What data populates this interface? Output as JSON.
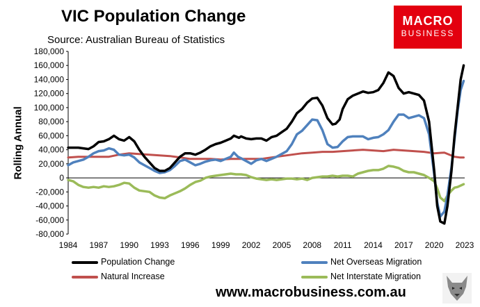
{
  "chart_data": {
    "type": "line",
    "title": "VIC Population Change",
    "subtitle": "Source: Australian Bureau of Statistics",
    "ylabel": "Rolling Annual",
    "xlabel": "",
    "xlim": [
      1984,
      2023
    ],
    "ylim": [
      -80000,
      180000
    ],
    "x_ticks": [
      1984,
      1987,
      1990,
      1993,
      1996,
      1999,
      2002,
      2005,
      2008,
      2011,
      2014,
      2017,
      2020,
      2023
    ],
    "y_ticks": [
      180000,
      160000,
      140000,
      120000,
      100000,
      80000,
      60000,
      40000,
      20000,
      0,
      -20000,
      -40000,
      -60000,
      -80000
    ],
    "y_tick_labels": [
      "180,000",
      "160,000",
      "140,000",
      "120,000",
      "100,000",
      "80,000",
      "60,000",
      "40,000",
      "20,000",
      "0",
      "-20,000",
      "-40,000",
      "-60,000",
      "-80,000"
    ],
    "series": [
      {
        "name": "Population Change",
        "color": "#000000",
        "points": [
          [
            1984,
            43000
          ],
          [
            1985,
            43000
          ],
          [
            1986,
            41000
          ],
          [
            1986.5,
            45000
          ],
          [
            1987,
            51000
          ],
          [
            1987.5,
            52000
          ],
          [
            1988,
            55000
          ],
          [
            1988.5,
            60000
          ],
          [
            1989,
            55000
          ],
          [
            1989.5,
            53000
          ],
          [
            1990,
            58000
          ],
          [
            1990.5,
            52000
          ],
          [
            1991,
            40000
          ],
          [
            1991.5,
            30000
          ],
          [
            1992,
            22000
          ],
          [
            1992.5,
            14000
          ],
          [
            1993,
            10000
          ],
          [
            1993.5,
            10000
          ],
          [
            1994,
            14000
          ],
          [
            1994.5,
            22000
          ],
          [
            1995,
            30000
          ],
          [
            1995.5,
            35000
          ],
          [
            1996,
            35000
          ],
          [
            1996.5,
            33000
          ],
          [
            1997,
            36000
          ],
          [
            1997.5,
            40000
          ],
          [
            1998,
            45000
          ],
          [
            1998.5,
            48000
          ],
          [
            1999,
            50000
          ],
          [
            1999.5,
            53000
          ],
          [
            2000,
            56000
          ],
          [
            2000.3,
            60000
          ],
          [
            2000.8,
            57000
          ],
          [
            2001,
            59000
          ],
          [
            2001.5,
            56000
          ],
          [
            2002,
            55000
          ],
          [
            2002.5,
            56000
          ],
          [
            2003,
            56000
          ],
          [
            2003.5,
            53000
          ],
          [
            2004,
            58000
          ],
          [
            2004.5,
            60000
          ],
          [
            2005,
            65000
          ],
          [
            2005.5,
            70000
          ],
          [
            2006,
            80000
          ],
          [
            2006.5,
            92000
          ],
          [
            2007,
            98000
          ],
          [
            2007.5,
            107000
          ],
          [
            2008,
            113000
          ],
          [
            2008.5,
            114000
          ],
          [
            2009,
            103000
          ],
          [
            2009.5,
            85000
          ],
          [
            2010,
            76000
          ],
          [
            2010.3,
            77000
          ],
          [
            2010.7,
            83000
          ],
          [
            2011,
            98000
          ],
          [
            2011.5,
            112000
          ],
          [
            2012,
            117000
          ],
          [
            2012.5,
            120000
          ],
          [
            2013,
            123000
          ],
          [
            2013.5,
            121000
          ],
          [
            2014,
            122000
          ],
          [
            2014.5,
            125000
          ],
          [
            2015,
            135000
          ],
          [
            2015.5,
            150000
          ],
          [
            2016,
            145000
          ],
          [
            2016.5,
            128000
          ],
          [
            2017,
            120000
          ],
          [
            2017.5,
            122000
          ],
          [
            2018,
            120000
          ],
          [
            2018.5,
            118000
          ],
          [
            2019,
            110000
          ],
          [
            2019.5,
            80000
          ],
          [
            2020,
            10000
          ],
          [
            2020.3,
            -40000
          ],
          [
            2020.6,
            -62000
          ],
          [
            2021,
            -65000
          ],
          [
            2021.3,
            -40000
          ],
          [
            2021.7,
            10000
          ],
          [
            2022,
            60000
          ],
          [
            2022.3,
            100000
          ],
          [
            2022.6,
            140000
          ],
          [
            2022.9,
            160000
          ]
        ]
      },
      {
        "name": "Net Overseas Migration",
        "color": "#4f81bd",
        "points": [
          [
            1984,
            18000
          ],
          [
            1984.5,
            22000
          ],
          [
            1985,
            24000
          ],
          [
            1985.5,
            26000
          ],
          [
            1986,
            30000
          ],
          [
            1986.5,
            35000
          ],
          [
            1987,
            38000
          ],
          [
            1987.5,
            39000
          ],
          [
            1988,
            42000
          ],
          [
            1988.5,
            40000
          ],
          [
            1989,
            33000
          ],
          [
            1989.5,
            32000
          ],
          [
            1990,
            33000
          ],
          [
            1990.5,
            29000
          ],
          [
            1991,
            22000
          ],
          [
            1991.5,
            18000
          ],
          [
            1992,
            14000
          ],
          [
            1992.5,
            10000
          ],
          [
            1993,
            7000
          ],
          [
            1993.5,
            8000
          ],
          [
            1994,
            11000
          ],
          [
            1994.5,
            17000
          ],
          [
            1995,
            24000
          ],
          [
            1995.5,
            26000
          ],
          [
            1996,
            22000
          ],
          [
            1996.5,
            18000
          ],
          [
            1997,
            20000
          ],
          [
            1997.5,
            23000
          ],
          [
            1998,
            25000
          ],
          [
            1998.5,
            26000
          ],
          [
            1999,
            24000
          ],
          [
            1999.5,
            27000
          ],
          [
            2000,
            30000
          ],
          [
            2000.3,
            36000
          ],
          [
            2000.7,
            30000
          ],
          [
            2001,
            28000
          ],
          [
            2001.5,
            24000
          ],
          [
            2002,
            20000
          ],
          [
            2002.5,
            25000
          ],
          [
            2003,
            27000
          ],
          [
            2003.5,
            24000
          ],
          [
            2004,
            27000
          ],
          [
            2004.5,
            30000
          ],
          [
            2005,
            34000
          ],
          [
            2005.5,
            38000
          ],
          [
            2006,
            48000
          ],
          [
            2006.5,
            62000
          ],
          [
            2007,
            67000
          ],
          [
            2007.5,
            75000
          ],
          [
            2008,
            83000
          ],
          [
            2008.5,
            82000
          ],
          [
            2009,
            68000
          ],
          [
            2009.5,
            48000
          ],
          [
            2010,
            43000
          ],
          [
            2010.5,
            44000
          ],
          [
            2011,
            52000
          ],
          [
            2011.5,
            58000
          ],
          [
            2012,
            59000
          ],
          [
            2012.5,
            59000
          ],
          [
            2013,
            59000
          ],
          [
            2013.5,
            55000
          ],
          [
            2014,
            57000
          ],
          [
            2014.5,
            58000
          ],
          [
            2015,
            62000
          ],
          [
            2015.5,
            68000
          ],
          [
            2016,
            80000
          ],
          [
            2016.5,
            90000
          ],
          [
            2017,
            90000
          ],
          [
            2017.5,
            85000
          ],
          [
            2018,
            87000
          ],
          [
            2018.5,
            89000
          ],
          [
            2019,
            85000
          ],
          [
            2019.5,
            62000
          ],
          [
            2020,
            5000
          ],
          [
            2020.3,
            -35000
          ],
          [
            2020.6,
            -55000
          ],
          [
            2021,
            -48000
          ],
          [
            2021.3,
            -25000
          ],
          [
            2021.7,
            15000
          ],
          [
            2022,
            55000
          ],
          [
            2022.3,
            95000
          ],
          [
            2022.6,
            125000
          ],
          [
            2022.9,
            138000
          ]
        ]
      },
      {
        "name": "Natural Increase",
        "color": "#c0504d",
        "points": [
          [
            1984,
            29000
          ],
          [
            1985,
            30000
          ],
          [
            1986,
            30000
          ],
          [
            1987,
            30000
          ],
          [
            1988,
            30000
          ],
          [
            1989,
            33000
          ],
          [
            1990,
            35000
          ],
          [
            1991,
            34000
          ],
          [
            1992,
            33000
          ],
          [
            1993,
            32000
          ],
          [
            1994,
            31000
          ],
          [
            1995,
            29000
          ],
          [
            1996,
            27000
          ],
          [
            1997,
            27000
          ],
          [
            1998,
            27000
          ],
          [
            1999,
            26000
          ],
          [
            2000,
            27000
          ],
          [
            2001,
            27000
          ],
          [
            2002,
            27000
          ],
          [
            2003,
            27000
          ],
          [
            2004,
            29000
          ],
          [
            2005,
            31000
          ],
          [
            2006,
            33000
          ],
          [
            2007,
            35000
          ],
          [
            2008,
            36000
          ],
          [
            2009,
            37000
          ],
          [
            2010,
            37000
          ],
          [
            2011,
            38000
          ],
          [
            2012,
            39000
          ],
          [
            2013,
            40000
          ],
          [
            2014,
            39000
          ],
          [
            2015,
            38000
          ],
          [
            2016,
            40000
          ],
          [
            2017,
            39000
          ],
          [
            2018,
            38000
          ],
          [
            2019,
            37000
          ],
          [
            2020,
            35000
          ],
          [
            2021,
            36000
          ],
          [
            2021.5,
            33000
          ],
          [
            2022,
            30000
          ],
          [
            2022.5,
            29000
          ],
          [
            2022.9,
            29000
          ]
        ]
      },
      {
        "name": "Net Interstate Migration",
        "color": "#9bbb59",
        "points": [
          [
            1984,
            -3000
          ],
          [
            1984.5,
            -5000
          ],
          [
            1985,
            -10000
          ],
          [
            1985.5,
            -13000
          ],
          [
            1986,
            -14000
          ],
          [
            1986.5,
            -13000
          ],
          [
            1987,
            -14000
          ],
          [
            1987.5,
            -12000
          ],
          [
            1988,
            -13000
          ],
          [
            1988.5,
            -12000
          ],
          [
            1989,
            -10000
          ],
          [
            1989.5,
            -7000
          ],
          [
            1990,
            -8000
          ],
          [
            1990.5,
            -14000
          ],
          [
            1991,
            -18000
          ],
          [
            1991.5,
            -19000
          ],
          [
            1992,
            -20000
          ],
          [
            1992.5,
            -25000
          ],
          [
            1993,
            -28000
          ],
          [
            1993.5,
            -29000
          ],
          [
            1994,
            -25000
          ],
          [
            1994.5,
            -22000
          ],
          [
            1995,
            -19000
          ],
          [
            1995.5,
            -15000
          ],
          [
            1996,
            -10000
          ],
          [
            1996.5,
            -6000
          ],
          [
            1997,
            -4000
          ],
          [
            1997.5,
            0
          ],
          [
            1998,
            2000
          ],
          [
            1998.5,
            3000
          ],
          [
            1999,
            4000
          ],
          [
            1999.5,
            5000
          ],
          [
            2000,
            6000
          ],
          [
            2000.5,
            5000
          ],
          [
            2001,
            5000
          ],
          [
            2001.5,
            4000
          ],
          [
            2002,
            1000
          ],
          [
            2002.5,
            -1000
          ],
          [
            2003,
            -2000
          ],
          [
            2003.5,
            -3000
          ],
          [
            2004,
            -2000
          ],
          [
            2004.5,
            -3000
          ],
          [
            2005,
            -2000
          ],
          [
            2005.5,
            -1000
          ],
          [
            2006,
            -1000
          ],
          [
            2006.5,
            -2000
          ],
          [
            2007,
            -1000
          ],
          [
            2007.5,
            -3000
          ],
          [
            2008,
            0
          ],
          [
            2008.5,
            1000
          ],
          [
            2009,
            2000
          ],
          [
            2009.5,
            2000
          ],
          [
            2010,
            3000
          ],
          [
            2010.5,
            2000
          ],
          [
            2011,
            3000
          ],
          [
            2011.5,
            3000
          ],
          [
            2012,
            2000
          ],
          [
            2012.5,
            6000
          ],
          [
            2013,
            8000
          ],
          [
            2013.5,
            10000
          ],
          [
            2014,
            11000
          ],
          [
            2014.5,
            11000
          ],
          [
            2015,
            13000
          ],
          [
            2015.5,
            17000
          ],
          [
            2016,
            16000
          ],
          [
            2016.5,
            14000
          ],
          [
            2017,
            10000
          ],
          [
            2017.5,
            8000
          ],
          [
            2018,
            8000
          ],
          [
            2018.5,
            6000
          ],
          [
            2019,
            4000
          ],
          [
            2019.5,
            0
          ],
          [
            2020,
            -5000
          ],
          [
            2020.3,
            -15000
          ],
          [
            2020.6,
            -28000
          ],
          [
            2021,
            -33000
          ],
          [
            2021.3,
            -25000
          ],
          [
            2021.7,
            -18000
          ],
          [
            2022,
            -14000
          ],
          [
            2022.3,
            -13000
          ],
          [
            2022.6,
            -11000
          ],
          [
            2022.9,
            -9000
          ]
        ]
      }
    ],
    "legend": [
      "Population Change",
      "Net Overseas Migration",
      "Natural Increase",
      "Net Interstate Migration"
    ]
  },
  "logo": {
    "line1": "MACRO",
    "line2": "BUSINESS"
  },
  "website": "www.macrobusiness.com.au",
  "colors": {
    "brand_red": "#e3000f"
  }
}
